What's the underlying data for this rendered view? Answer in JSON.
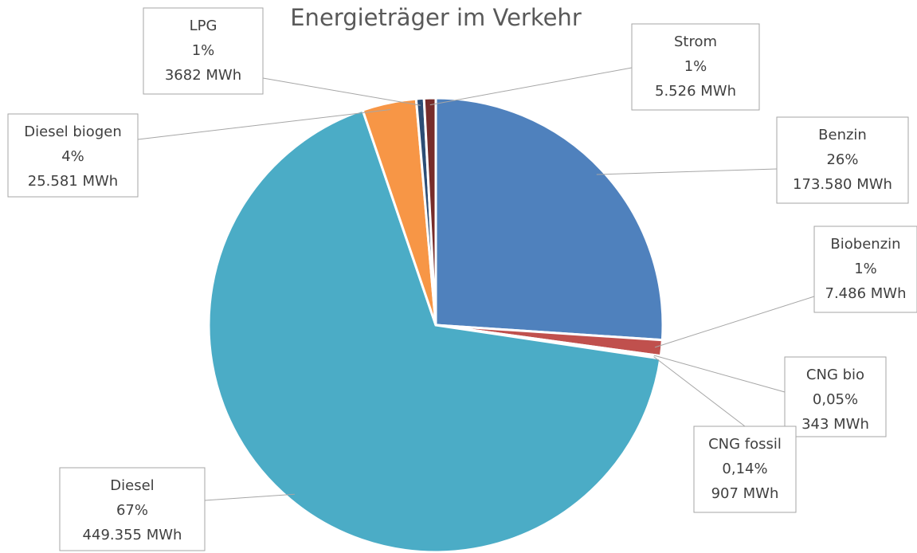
{
  "chart_data": {
    "type": "pie",
    "title": "Energieträger im Verkehr",
    "categories": [
      "Benzin",
      "Biobenzin",
      "CNG bio",
      "CNG fossil",
      "Diesel",
      "Diesel biogen",
      "LPG",
      "Strom"
    ],
    "values": [
      173580,
      7486,
      343,
      907,
      449355,
      25581,
      3682,
      5526
    ],
    "value_labels": [
      "173.580 MWh",
      "7.486 MWh",
      "343 MWh",
      "907 MWh",
      "449.355 MWh",
      "25.581 MWh",
      "3682 MWh",
      "5.526 MWh"
    ],
    "percent_labels": [
      "26%",
      "1%",
      "0,05%",
      "0,14%",
      "67%",
      "4%",
      "1%",
      "1%"
    ],
    "colors": [
      "#4f81bd",
      "#c0504d",
      "#9bbb59",
      "#8064a2",
      "#4bacc6",
      "#f79646",
      "#2c4d75",
      "#772c2a"
    ]
  }
}
